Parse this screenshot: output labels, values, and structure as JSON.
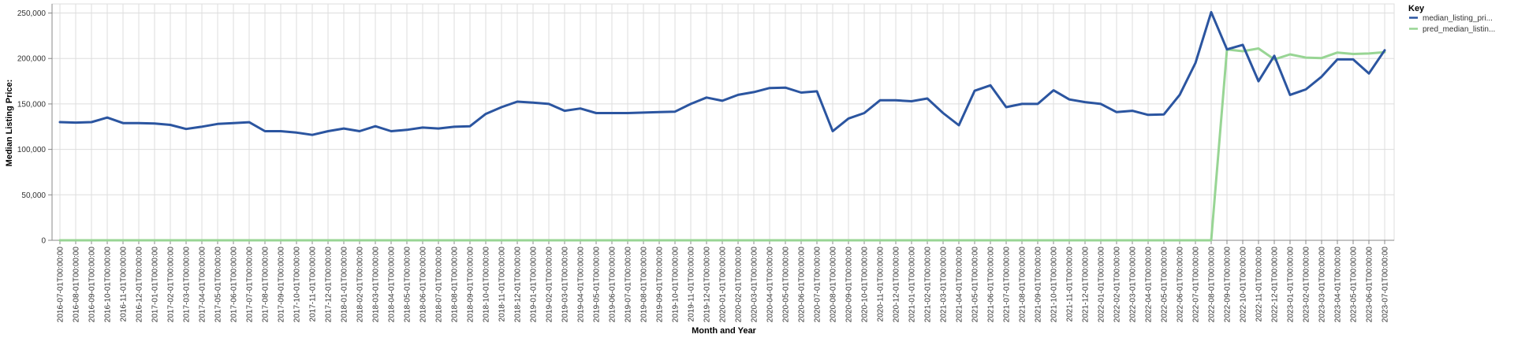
{
  "chart_data": {
    "type": "line",
    "xlabel": "Month and Year",
    "ylabel": "Median Listing Price:",
    "ylim": [
      0,
      260000
    ],
    "yticks": [
      0,
      50000,
      100000,
      150000,
      200000,
      250000
    ],
    "ytick_labels": [
      "0",
      "50,000",
      "100,000",
      "150,000",
      "200,000",
      "250,000"
    ],
    "grid": true,
    "legend": {
      "title": "Key",
      "position": "top-right"
    },
    "x": [
      "2016-07-01T00:00:00",
      "2016-08-01T00:00:00",
      "2016-09-01T00:00:00",
      "2016-10-01T00:00:00",
      "2016-11-01T00:00:00",
      "2016-12-01T00:00:00",
      "2017-01-01T00:00:00",
      "2017-02-01T00:00:00",
      "2017-03-01T00:00:00",
      "2017-04-01T00:00:00",
      "2017-05-01T00:00:00",
      "2017-06-01T00:00:00",
      "2017-07-01T00:00:00",
      "2017-08-01T00:00:00",
      "2017-09-01T00:00:00",
      "2017-10-01T00:00:00",
      "2017-11-01T00:00:00",
      "2017-12-01T00:00:00",
      "2018-01-01T00:00:00",
      "2018-02-01T00:00:00",
      "2018-03-01T00:00:00",
      "2018-04-01T00:00:00",
      "2018-05-01T00:00:00",
      "2018-06-01T00:00:00",
      "2018-07-01T00:00:00",
      "2018-08-01T00:00:00",
      "2018-09-01T00:00:00",
      "2018-10-01T00:00:00",
      "2018-11-01T00:00:00",
      "2018-12-01T00:00:00",
      "2019-01-01T00:00:00",
      "2019-02-01T00:00:00",
      "2019-03-01T00:00:00",
      "2019-04-01T00:00:00",
      "2019-05-01T00:00:00",
      "2019-06-01T00:00:00",
      "2019-07-01T00:00:00",
      "2019-08-01T00:00:00",
      "2019-09-01T00:00:00",
      "2019-10-01T00:00:00",
      "2019-11-01T00:00:00",
      "2019-12-01T00:00:00",
      "2020-01-01T00:00:00",
      "2020-02-01T00:00:00",
      "2020-03-01T00:00:00",
      "2020-04-01T00:00:00",
      "2020-05-01T00:00:00",
      "2020-06-01T00:00:00",
      "2020-07-01T00:00:00",
      "2020-08-01T00:00:00",
      "2020-09-01T00:00:00",
      "2020-10-01T00:00:00",
      "2020-11-01T00:00:00",
      "2020-12-01T00:00:00",
      "2021-01-01T00:00:00",
      "2021-02-01T00:00:00",
      "2021-03-01T00:00:00",
      "2021-04-01T00:00:00",
      "2021-05-01T00:00:00",
      "2021-06-01T00:00:00",
      "2021-07-01T00:00:00",
      "2021-08-01T00:00:00",
      "2021-09-01T00:00:00",
      "2021-10-01T00:00:00",
      "2021-11-01T00:00:00",
      "2021-12-01T00:00:00",
      "2022-01-01T00:00:00",
      "2022-02-01T00:00:00",
      "2022-03-01T00:00:00",
      "2022-04-01T00:00:00",
      "2022-05-01T00:00:00",
      "2022-06-01T00:00:00",
      "2022-07-01T00:00:00",
      "2022-08-01T00:00:00",
      "2022-09-01T00:00:00",
      "2022-10-01T00:00:00",
      "2022-11-01T00:00:00",
      "2022-12-01T00:00:00",
      "2023-01-01T00:00:00",
      "2023-02-01T00:00:00",
      "2023-03-01T00:00:00",
      "2023-04-01T00:00:00",
      "2023-05-01T00:00:00",
      "2023-06-01T00:00:00",
      "2023-07-01T00:00:00"
    ],
    "series": [
      {
        "name": "median_listing_pri...",
        "color": "#2b55a0",
        "values": [
          130000,
          129500,
          130000,
          135000,
          129000,
          129000,
          128500,
          127000,
          122500,
          125000,
          128000,
          129000,
          129900,
          120000,
          120000,
          118500,
          116000,
          120000,
          123000,
          120000,
          125500,
          120000,
          121500,
          124000,
          123000,
          124900,
          125500,
          139000,
          146500,
          152500,
          151500,
          150000,
          142500,
          145000,
          140000,
          140000,
          140000,
          140500,
          141000,
          141500,
          150000,
          157000,
          153500,
          160000,
          163000,
          167500,
          168000,
          162500,
          163900,
          120000,
          134000,
          140000,
          154000,
          154000,
          153000,
          156000,
          140000,
          126500,
          164500,
          170500,
          146500,
          150000,
          150000,
          165000,
          155000,
          152000,
          150000,
          141000,
          142500,
          138000,
          138500,
          160000,
          195000,
          251000,
          210000,
          215000,
          175000,
          203000,
          160000,
          166000,
          180000,
          199000,
          199000,
          183500,
          209000
        ]
      },
      {
        "name": "pred_median_listin...",
        "color": "#98d594",
        "values": [
          0,
          0,
          0,
          0,
          0,
          0,
          0,
          0,
          0,
          0,
          0,
          0,
          0,
          0,
          0,
          0,
          0,
          0,
          0,
          0,
          0,
          0,
          0,
          0,
          0,
          0,
          0,
          0,
          0,
          0,
          0,
          0,
          0,
          0,
          0,
          0,
          0,
          0,
          0,
          0,
          0,
          0,
          0,
          0,
          0,
          0,
          0,
          0,
          0,
          0,
          0,
          0,
          0,
          0,
          0,
          0,
          0,
          0,
          0,
          0,
          0,
          0,
          0,
          0,
          0,
          0,
          0,
          0,
          0,
          0,
          0,
          0,
          0,
          0,
          210000,
          208000,
          211000,
          199000,
          204500,
          201000,
          200500,
          206500,
          205000,
          205500,
          207000
        ]
      }
    ]
  }
}
